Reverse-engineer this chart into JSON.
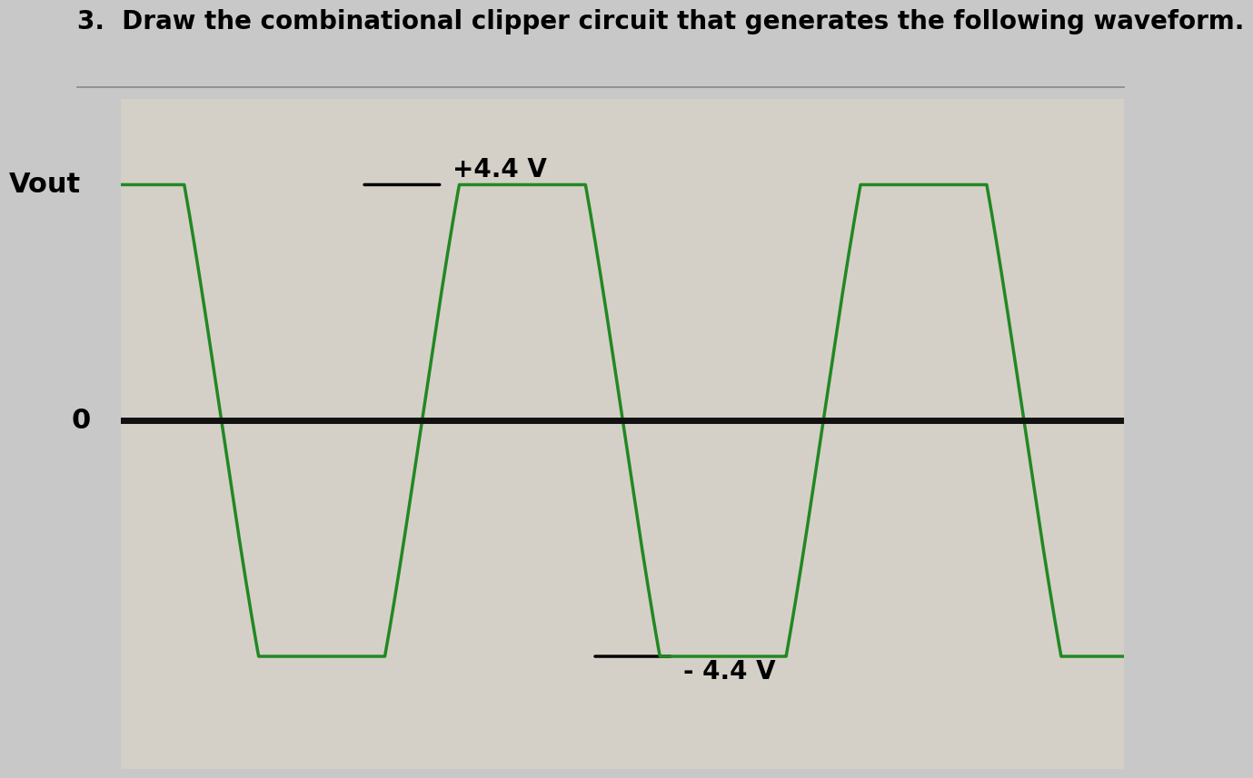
{
  "title": "3.  Draw the combinational clipper circuit that generates the following waveform.",
  "ylabel": "Vout",
  "pos_label": "+4.4 V",
  "neg_label": "- 4.4 V",
  "zero_label": "0",
  "bg_color": "#c8c8c8",
  "plot_bg_color": "#d4d0c8",
  "waveform_color": "#228822",
  "zero_line_color": "#111111",
  "grid_color": "#b8c8d8",
  "title_fontsize": 20,
  "label_fontsize": 22,
  "annotation_fontsize": 20,
  "vclip_high": 4.4,
  "vclip_low": -4.4,
  "ylim_high": 6.0,
  "ylim_low": -6.5,
  "waveform_lw": 2.5,
  "zero_line_lw": 5.0
}
